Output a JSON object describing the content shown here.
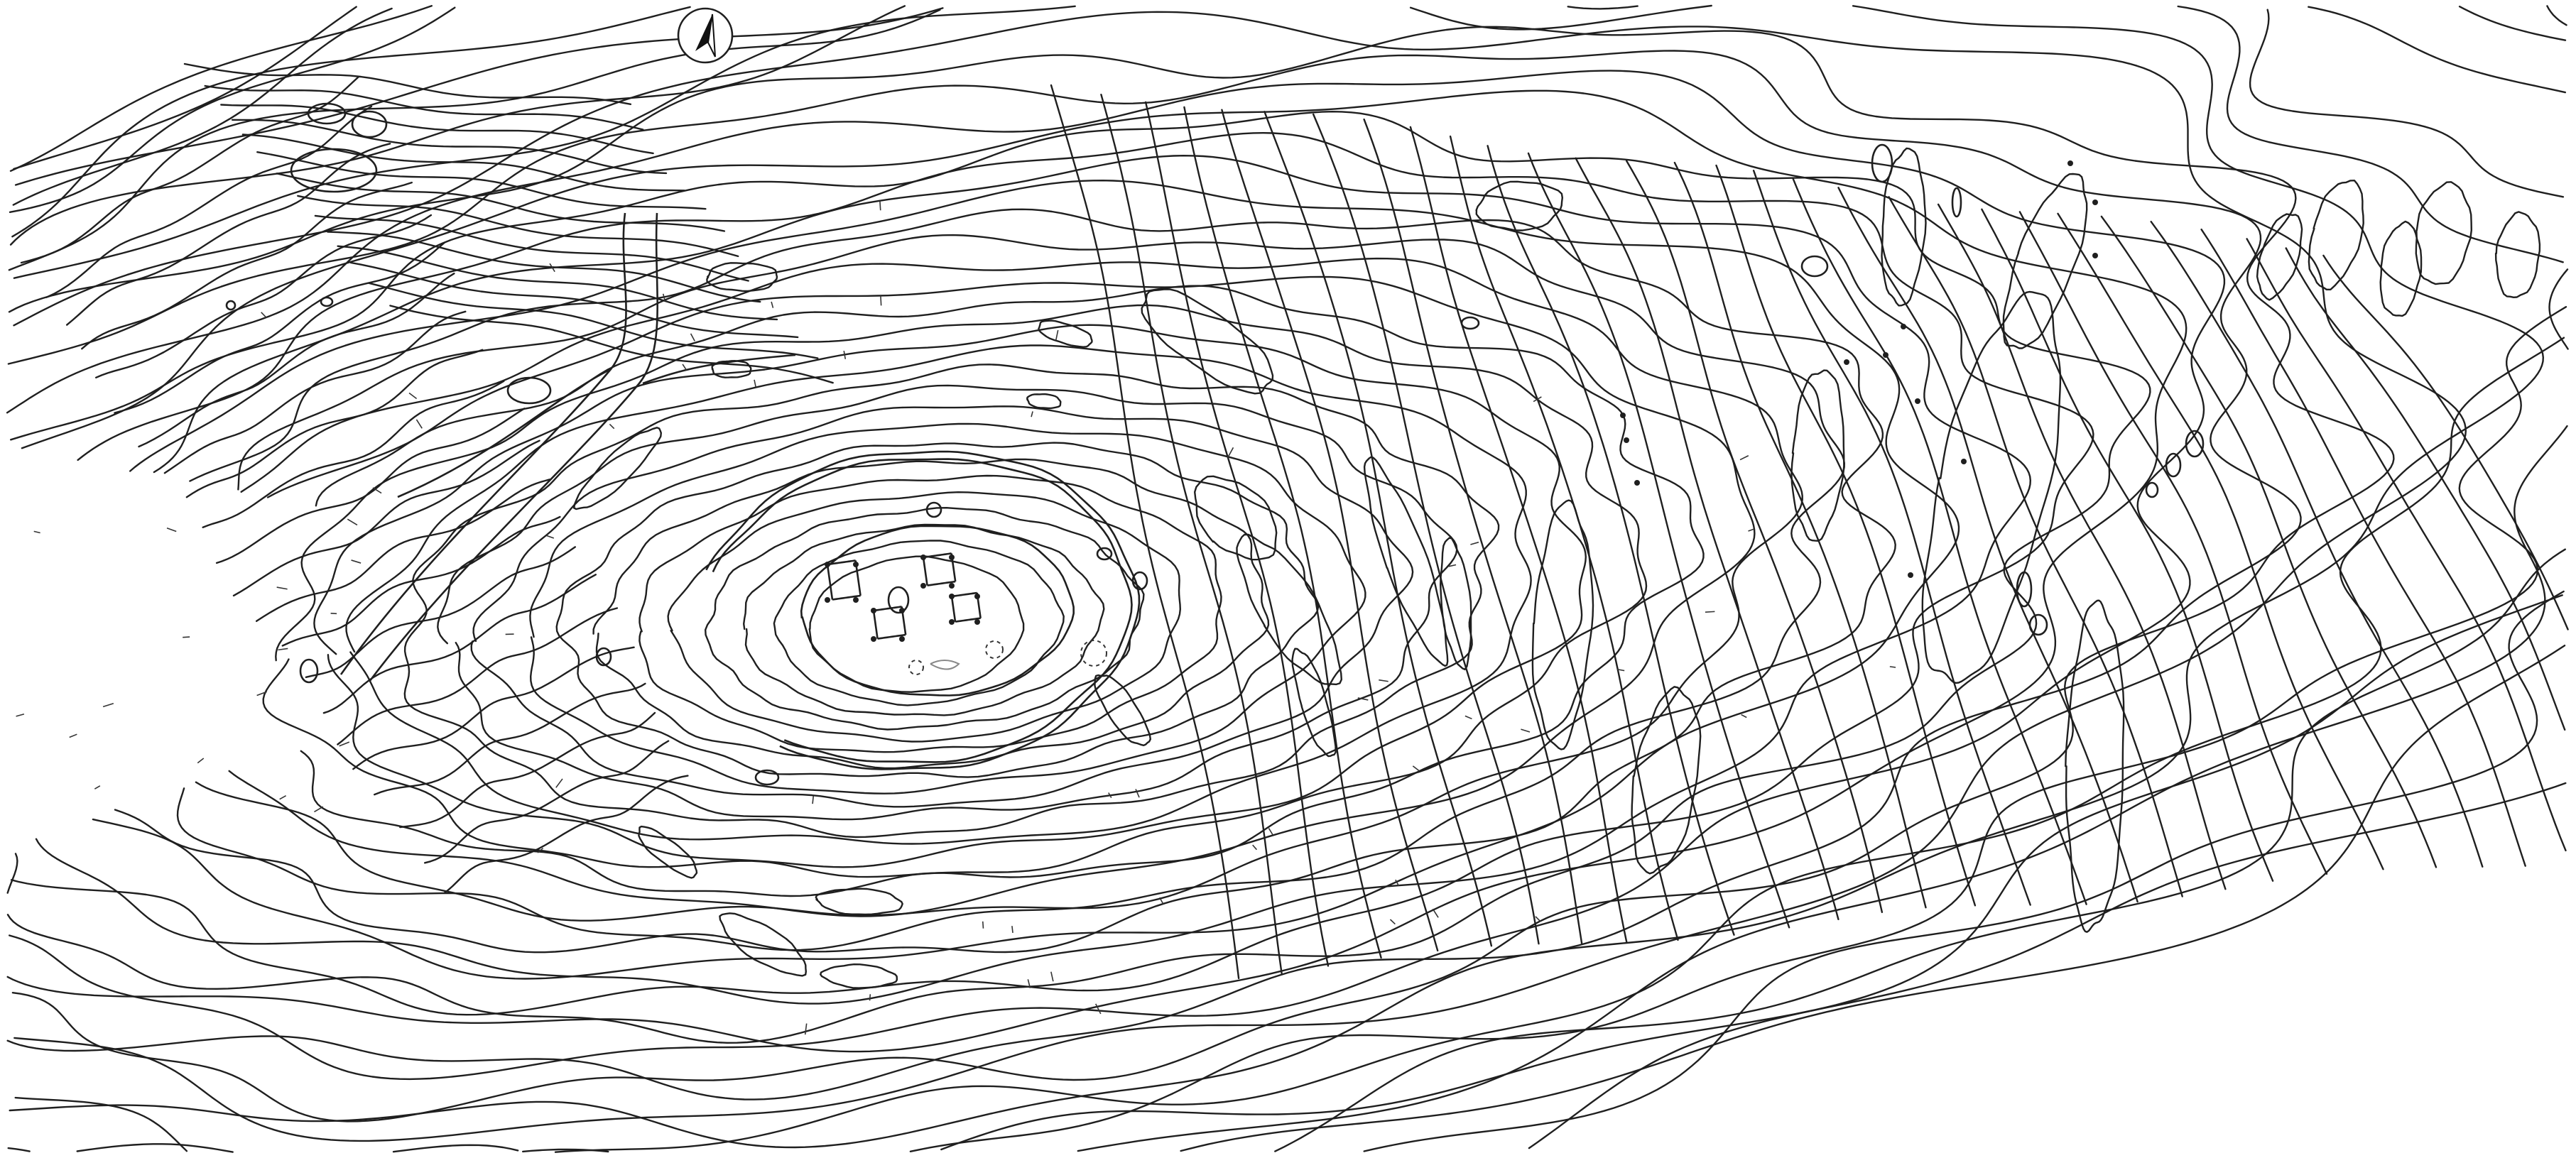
{
  "map": {
    "kind": "topographic-contour-plan",
    "colors": {
      "background": "#ffffff",
      "ink": "#1f1f1f",
      "faint": "#888888"
    },
    "north_arrow": {
      "icon": "north-arrow-icon"
    }
  }
}
